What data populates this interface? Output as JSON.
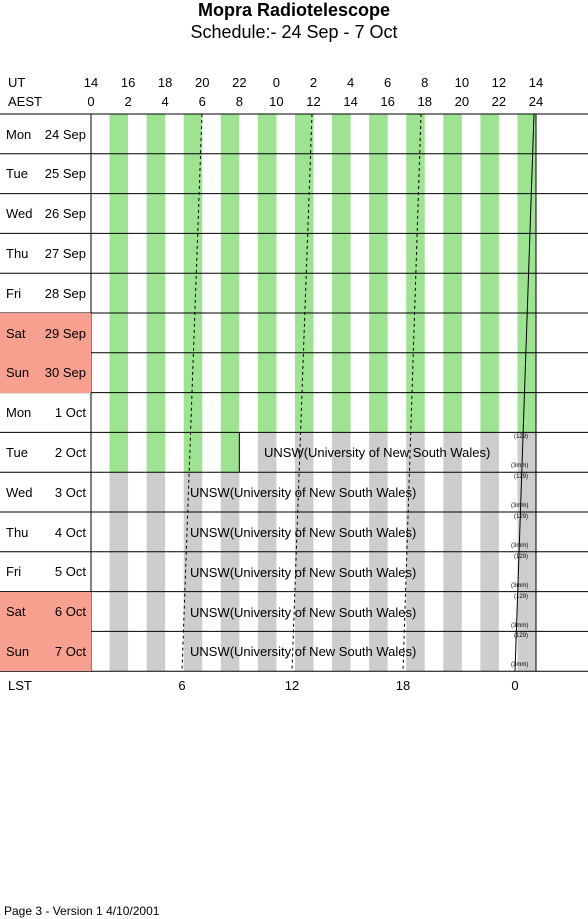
{
  "title": "Mopra Radiotelescope",
  "subtitle": "Schedule:- 24 Sep - 7  Oct",
  "ut_label": "UT",
  "aest_label": "AEST",
  "ut_ticks": [
    "14",
    "16",
    "18",
    "20",
    "22",
    "0",
    "2",
    "4",
    "6",
    "8",
    "10",
    "12",
    "14"
  ],
  "aest_ticks": [
    "0",
    "2",
    "4",
    "6",
    "8",
    "10",
    "12",
    "14",
    "16",
    "18",
    "20",
    "22",
    "24"
  ],
  "days": [
    {
      "name": "Mon",
      "date": "24 Sep",
      "weekend": false
    },
    {
      "name": "Tue",
      "date": "25 Sep",
      "weekend": false
    },
    {
      "name": "Wed",
      "date": "26 Sep",
      "weekend": false
    },
    {
      "name": "Thu",
      "date": "27 Sep",
      "weekend": false
    },
    {
      "name": "Fri",
      "date": "28 Sep",
      "weekend": false
    },
    {
      "name": "Sat",
      "date": "29 Sep",
      "weekend": true
    },
    {
      "name": "Sun",
      "date": "30 Sep",
      "weekend": true
    },
    {
      "name": "Mon",
      "date": "1  Oct",
      "weekend": false
    },
    {
      "name": "Tue",
      "date": "2  Oct",
      "weekend": false
    },
    {
      "name": "Wed",
      "date": "3  Oct",
      "weekend": false
    },
    {
      "name": "Thu",
      "date": "4  Oct",
      "weekend": false
    },
    {
      "name": "Fri",
      "date": "5  Oct",
      "weekend": false
    },
    {
      "name": "Sat",
      "date": "6  Oct",
      "weekend": true
    },
    {
      "name": "Sun",
      "date": "7  Oct",
      "weekend": true
    }
  ],
  "project_label": "UNSW(University of New South Wales)",
  "note_top": "(129)",
  "note_bottom": "(3mm)",
  "lst_label": "LST",
  "lst_ticks": [
    "6",
    "12",
    "18",
    "0"
  ],
  "footer": "Page 3 - Version 1  4/10/2001",
  "colors": {
    "stripe_free": "#9de392",
    "stripe_booked": "#cdcdcd",
    "weekend": "#f7a08f",
    "grid_line": "#000000"
  }
}
